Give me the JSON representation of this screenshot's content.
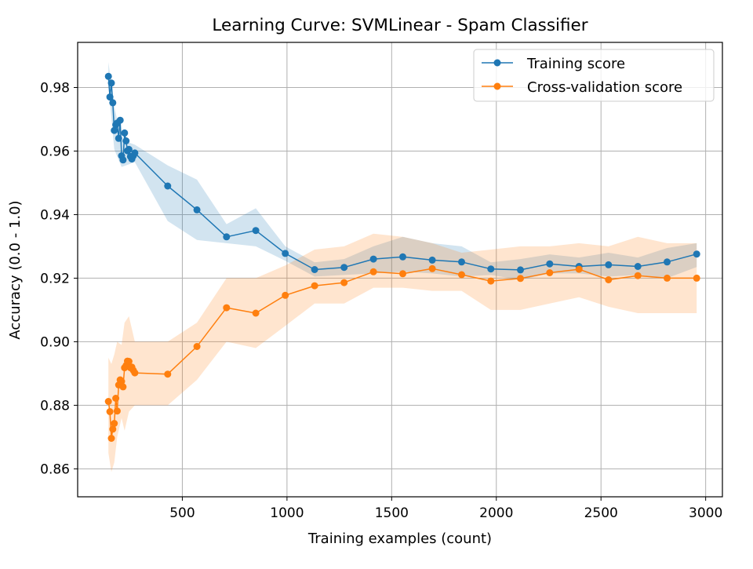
{
  "chart_data": {
    "type": "line",
    "title": "Learning Curve: SVMLinear - Spam Classifier",
    "xlabel": "Training examples (count)",
    "ylabel": "Accuracy (0.0 - 1.0)",
    "xlim": [
      0,
      3080
    ],
    "ylim": [
      0.8512,
      0.9942
    ],
    "x_ticks": [
      500,
      1000,
      1500,
      2000,
      2500,
      3000
    ],
    "y_ticks": [
      0.86,
      0.88,
      0.9,
      0.92,
      0.94,
      0.96,
      0.98
    ],
    "x_tick_labels": [
      "500",
      "1000",
      "1500",
      "2000",
      "2500",
      "3000"
    ],
    "y_tick_labels": [
      "0.86",
      "0.88",
      "0.90",
      "0.92",
      "0.94",
      "0.96",
      "0.98"
    ],
    "grid": true,
    "legend_position": "top-right",
    "series": [
      {
        "name": "Training score",
        "color": "#1f77b4",
        "band_color": "#1f77b4",
        "points": [
          [
            147,
            0.9835
          ],
          [
            154,
            0.977
          ],
          [
            161,
            0.9814
          ],
          [
            168,
            0.9752
          ],
          [
            175,
            0.9665
          ],
          [
            182,
            0.9683
          ],
          [
            189,
            0.9688
          ],
          [
            196,
            0.964
          ],
          [
            203,
            0.9697
          ],
          [
            210,
            0.9585
          ],
          [
            217,
            0.9572
          ],
          [
            224,
            0.9657
          ],
          [
            231,
            0.9632
          ],
          [
            238,
            0.9601
          ],
          [
            245,
            0.9605
          ],
          [
            252,
            0.9583
          ],
          [
            259,
            0.9575
          ],
          [
            266,
            0.9585
          ],
          [
            273,
            0.9594
          ],
          [
            430,
            0.949
          ],
          [
            570,
            0.9415
          ],
          [
            711,
            0.933
          ],
          [
            851,
            0.935
          ],
          [
            992,
            0.9278
          ],
          [
            1132,
            0.9227
          ],
          [
            1273,
            0.9234
          ],
          [
            1413,
            0.926
          ],
          [
            1553,
            0.9267
          ],
          [
            1694,
            0.9257
          ],
          [
            1834,
            0.9251
          ],
          [
            1974,
            0.9229
          ],
          [
            2115,
            0.9226
          ],
          [
            2255,
            0.9245
          ],
          [
            2395,
            0.9237
          ],
          [
            2536,
            0.9242
          ],
          [
            2676,
            0.9237
          ],
          [
            2816,
            0.9251
          ],
          [
            2957,
            0.9276
          ]
        ],
        "band": [
          [
            147,
            0.9808,
            0.988
          ],
          [
            175,
            0.9605,
            0.974
          ],
          [
            210,
            0.955,
            0.9635
          ],
          [
            273,
            0.9565,
            0.962
          ],
          [
            430,
            0.938,
            0.9555
          ],
          [
            570,
            0.932,
            0.951
          ],
          [
            711,
            0.931,
            0.937
          ],
          [
            851,
            0.93,
            0.942
          ],
          [
            992,
            0.9255,
            0.93
          ],
          [
            1132,
            0.9205,
            0.925
          ],
          [
            1273,
            0.921,
            0.926
          ],
          [
            1413,
            0.9215,
            0.93
          ],
          [
            1553,
            0.922,
            0.933
          ],
          [
            1694,
            0.9215,
            0.931
          ],
          [
            1834,
            0.9205,
            0.93
          ],
          [
            1974,
            0.921,
            0.925
          ],
          [
            2115,
            0.9195,
            0.926
          ],
          [
            2255,
            0.9215,
            0.9275
          ],
          [
            2395,
            0.9215,
            0.9265
          ],
          [
            2536,
            0.9205,
            0.928
          ],
          [
            2676,
            0.921,
            0.9265
          ],
          [
            2816,
            0.92,
            0.9295
          ],
          [
            2957,
            0.9235,
            0.931
          ]
        ]
      },
      {
        "name": "Cross-validation score",
        "color": "#ff7f0e",
        "band_color": "#ff7f0e",
        "points": [
          [
            147,
            0.8812
          ],
          [
            154,
            0.878
          ],
          [
            161,
            0.8696
          ],
          [
            168,
            0.8725
          ],
          [
            175,
            0.8743
          ],
          [
            182,
            0.8822
          ],
          [
            189,
            0.8782
          ],
          [
            196,
            0.8864
          ],
          [
            203,
            0.888
          ],
          [
            210,
            0.8875
          ],
          [
            217,
            0.8858
          ],
          [
            224,
            0.8918
          ],
          [
            231,
            0.8925
          ],
          [
            238,
            0.8939
          ],
          [
            245,
            0.8938
          ],
          [
            252,
            0.8918
          ],
          [
            259,
            0.892
          ],
          [
            266,
            0.891
          ],
          [
            273,
            0.8902
          ],
          [
            430,
            0.8898
          ],
          [
            570,
            0.8985
          ],
          [
            711,
            0.9107
          ],
          [
            851,
            0.909
          ],
          [
            992,
            0.9146
          ],
          [
            1132,
            0.9176
          ],
          [
            1273,
            0.9186
          ],
          [
            1413,
            0.922
          ],
          [
            1553,
            0.9214
          ],
          [
            1694,
            0.923
          ],
          [
            1834,
            0.9211
          ],
          [
            1974,
            0.9191
          ],
          [
            2115,
            0.9199
          ],
          [
            2255,
            0.9217
          ],
          [
            2395,
            0.9228
          ],
          [
            2536,
            0.9195
          ],
          [
            2676,
            0.9208
          ],
          [
            2816,
            0.92
          ],
          [
            2957,
            0.92
          ]
        ],
        "band": [
          [
            147,
            0.865,
            0.895
          ],
          [
            161,
            0.859,
            0.893
          ],
          [
            175,
            0.862,
            0.896
          ],
          [
            189,
            0.87,
            0.9
          ],
          [
            210,
            0.876,
            0.899
          ],
          [
            224,
            0.872,
            0.906
          ],
          [
            245,
            0.878,
            0.908
          ],
          [
            273,
            0.88,
            0.9
          ],
          [
            430,
            0.88,
            0.9
          ],
          [
            570,
            0.888,
            0.906
          ],
          [
            711,
            0.9,
            0.92
          ],
          [
            851,
            0.898,
            0.92
          ],
          [
            992,
            0.905,
            0.924
          ],
          [
            1132,
            0.912,
            0.929
          ],
          [
            1273,
            0.912,
            0.93
          ],
          [
            1413,
            0.917,
            0.934
          ],
          [
            1553,
            0.917,
            0.933
          ],
          [
            1694,
            0.916,
            0.931
          ],
          [
            1834,
            0.916,
            0.928
          ],
          [
            1974,
            0.91,
            0.929
          ],
          [
            2115,
            0.91,
            0.93
          ],
          [
            2255,
            0.912,
            0.93
          ],
          [
            2395,
            0.914,
            0.931
          ],
          [
            2536,
            0.911,
            0.93
          ],
          [
            2676,
            0.909,
            0.933
          ],
          [
            2816,
            0.909,
            0.931
          ],
          [
            2957,
            0.909,
            0.931
          ]
        ]
      }
    ]
  }
}
